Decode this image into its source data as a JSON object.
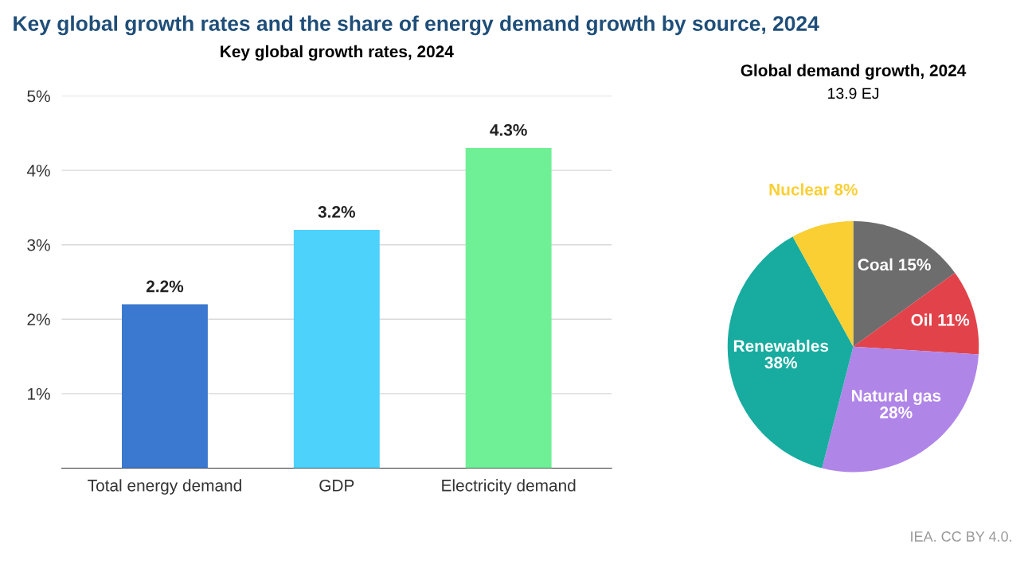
{
  "chart_data": [
    {
      "type": "bar",
      "title": "Key global growth rates and the share of energy demand growth by source, 2024",
      "subtitle": "Key global growth rates, 2024",
      "categories": [
        "Total energy demand",
        "GDP",
        "Electricity demand"
      ],
      "values": [
        2.2,
        3.2,
        4.3
      ],
      "colors": [
        "#3b78d0",
        "#4dd2fb",
        "#6ff097"
      ],
      "value_labels": [
        "2.2%",
        "3.2%",
        "4.3%"
      ],
      "ylim": [
        0,
        5
      ],
      "yticks": [
        {
          "value": 1,
          "label": "1%"
        },
        {
          "value": 2,
          "label": "2%"
        },
        {
          "value": 3,
          "label": "3%"
        },
        {
          "value": 4,
          "label": "4%"
        },
        {
          "value": 5,
          "label": "5%"
        }
      ],
      "grid": "y"
    },
    {
      "type": "pie",
      "title": "Global demand growth, 2024",
      "subtitle": "13.9 EJ",
      "categories": [
        "Coal",
        "Oil",
        "Natural gas",
        "Renewables",
        "Nuclear"
      ],
      "values": [
        15,
        11,
        28,
        38,
        8
      ],
      "colors": [
        "#6d6d6d",
        "#e2424a",
        "#b085e8",
        "#17ac9f",
        "#f9cf33"
      ],
      "value_labels": [
        "15%",
        "11%",
        "28%",
        "38%",
        "8%"
      ],
      "annotations": [
        "IEA. CC BY 4.0."
      ]
    }
  ]
}
